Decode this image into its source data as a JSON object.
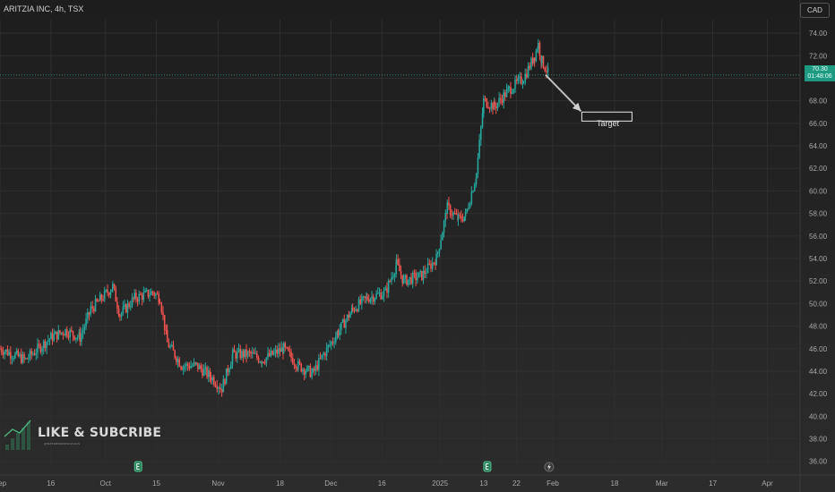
{
  "header": {
    "title": "ARITZIA INC, 4h, TSX",
    "currency": "CAD"
  },
  "price_badge": {
    "price": "70.30",
    "countdown": "01:48:06"
  },
  "watermark": {
    "title": "LIKE & SUBCRIBE",
    "subtitle": "@WATERMARKSIGNALS",
    "icon": "bar-chart-logo-icon"
  },
  "annotation": {
    "label": "Target",
    "target_low": 66.2,
    "target_high": 67.0,
    "arrow_from_date": "2025-01-30",
    "arrow_to_date": "2025-02-08"
  },
  "colors": {
    "up": "#26a69a",
    "down": "#ef5350",
    "price_line": "#26a69a",
    "grid": "#2f2f2f",
    "axis_text": "#a8a8a8"
  },
  "event_markers": [
    {
      "type": "earnings",
      "icon": "earnings-icon",
      "date": "2024-10-10"
    },
    {
      "type": "earnings",
      "icon": "earnings-icon",
      "date": "2025-01-14"
    },
    {
      "type": "dividend",
      "icon": "lightning-icon",
      "date": "2025-01-31"
    }
  ],
  "chart_data": {
    "type": "candlestick",
    "title": "ARITZIA INC, 4h, TSX",
    "interval": "4h",
    "currency": "CAD",
    "last_price": 70.3,
    "ylim": [
      35.5,
      75.2
    ],
    "xlim": [
      "2024-09-02",
      "2025-04-10"
    ],
    "grid": true,
    "y_ticks": [
      "74.00",
      "72.00",
      "70.00",
      "68.00",
      "66.00",
      "64.00",
      "62.00",
      "60.00",
      "58.00",
      "56.00",
      "54.00",
      "52.00",
      "50.00",
      "48.00",
      "46.00",
      "44.00",
      "42.00",
      "40.00",
      "38.00",
      "36.00"
    ],
    "x_ticks": [
      {
        "label": "Sep",
        "date": "2024-09-02"
      },
      {
        "label": "16",
        "date": "2024-09-16"
      },
      {
        "label": "Oct",
        "date": "2024-10-01"
      },
      {
        "label": "15",
        "date": "2024-10-15"
      },
      {
        "label": "Nov",
        "date": "2024-11-01"
      },
      {
        "label": "18",
        "date": "2024-11-18"
      },
      {
        "label": "Dec",
        "date": "2024-12-02"
      },
      {
        "label": "16",
        "date": "2024-12-16"
      },
      {
        "label": "2025",
        "date": "2025-01-01"
      },
      {
        "label": "13",
        "date": "2025-01-13"
      },
      {
        "label": "22",
        "date": "2025-01-22"
      },
      {
        "label": "Feb",
        "date": "2025-02-01"
      },
      {
        "label": "18",
        "date": "2025-02-18"
      },
      {
        "label": "Mar",
        "date": "2025-03-03"
      },
      {
        "label": "17",
        "date": "2025-03-17"
      },
      {
        "label": "Apr",
        "date": "2025-04-01"
      }
    ],
    "waypoints": [
      [
        "2024-09-02",
        46.0
      ],
      [
        "2024-09-09",
        45.0
      ],
      [
        "2024-09-16",
        47.0
      ],
      [
        "2024-09-20",
        47.6
      ],
      [
        "2024-09-24",
        47.0
      ],
      [
        "2024-09-27",
        49.5
      ],
      [
        "2024-10-03",
        51.5
      ],
      [
        "2024-10-05",
        49.0
      ],
      [
        "2024-10-09",
        50.5
      ],
      [
        "2024-10-14",
        51.0
      ],
      [
        "2024-10-16",
        50.5
      ],
      [
        "2024-10-18",
        46.5
      ],
      [
        "2024-10-22",
        44.5
      ],
      [
        "2024-10-26",
        44.5
      ],
      [
        "2024-10-30",
        43.5
      ],
      [
        "2024-11-02",
        42.5
      ],
      [
        "2024-11-05",
        45.5
      ],
      [
        "2024-11-10",
        45.5
      ],
      [
        "2024-11-13",
        45.0
      ],
      [
        "2024-11-19",
        46.0
      ],
      [
        "2024-11-23",
        44.5
      ],
      [
        "2024-11-27",
        43.8
      ],
      [
        "2024-11-30",
        45.5
      ],
      [
        "2024-12-04",
        47.5
      ],
      [
        "2024-12-08",
        49.5
      ],
      [
        "2024-12-12",
        50.5
      ],
      [
        "2024-12-17",
        51.0
      ],
      [
        "2024-12-20",
        53.5
      ],
      [
        "2024-12-22",
        52.0
      ],
      [
        "2024-12-27",
        52.5
      ],
      [
        "2024-12-31",
        54.0
      ],
      [
        "2025-01-03",
        58.5
      ],
      [
        "2025-01-06",
        57.5
      ],
      [
        "2025-01-08",
        57.8
      ],
      [
        "2025-01-11",
        61.5
      ],
      [
        "2025-01-13",
        68.0
      ],
      [
        "2025-01-16",
        67.5
      ],
      [
        "2025-01-20",
        69.0
      ],
      [
        "2025-01-24",
        70.0
      ],
      [
        "2025-01-27",
        72.0
      ],
      [
        "2025-01-28",
        73.0
      ],
      [
        "2025-01-29",
        71.5
      ],
      [
        "2025-01-31",
        70.3
      ]
    ]
  }
}
